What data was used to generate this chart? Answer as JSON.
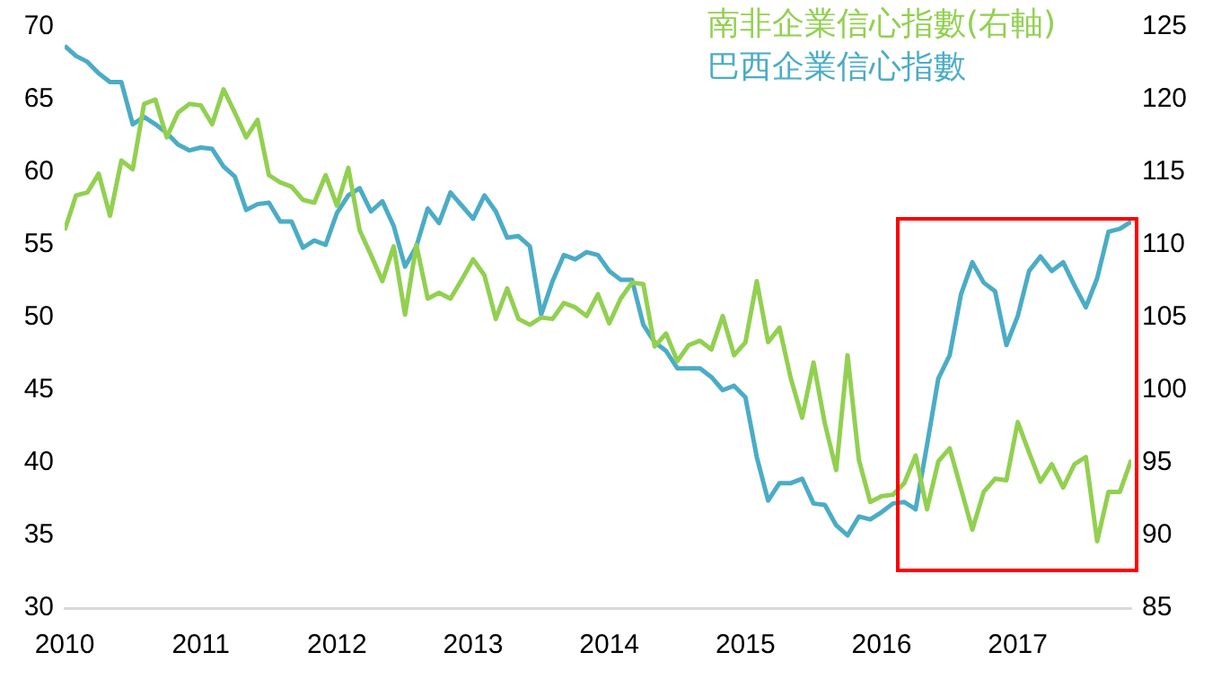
{
  "chart_data": {
    "type": "line",
    "x": [
      "2010-01",
      "2010-02",
      "2010-03",
      "2010-04",
      "2010-05",
      "2010-06",
      "2010-07",
      "2010-08",
      "2010-09",
      "2010-10",
      "2010-11",
      "2010-12",
      "2011-01",
      "2011-02",
      "2011-03",
      "2011-04",
      "2011-05",
      "2011-06",
      "2011-07",
      "2011-08",
      "2011-09",
      "2011-10",
      "2011-11",
      "2011-12",
      "2012-01",
      "2012-02",
      "2012-03",
      "2012-04",
      "2012-05",
      "2012-06",
      "2012-07",
      "2012-08",
      "2012-09",
      "2012-10",
      "2012-11",
      "2012-12",
      "2013-01",
      "2013-02",
      "2013-03",
      "2013-04",
      "2013-05",
      "2013-06",
      "2013-07",
      "2013-08",
      "2013-09",
      "2013-10",
      "2013-11",
      "2013-12",
      "2014-01",
      "2014-02",
      "2014-03",
      "2014-04",
      "2014-05",
      "2014-06",
      "2014-07",
      "2014-08",
      "2014-09",
      "2014-10",
      "2014-11",
      "2014-12",
      "2015-01",
      "2015-02",
      "2015-03",
      "2015-04",
      "2015-05",
      "2015-06",
      "2015-07",
      "2015-08",
      "2015-09",
      "2015-10",
      "2015-11",
      "2015-12",
      "2016-01",
      "2016-02",
      "2016-03",
      "2016-04",
      "2016-05",
      "2016-06",
      "2016-07",
      "2016-08",
      "2016-09",
      "2016-10",
      "2016-11",
      "2016-12",
      "2017-01",
      "2017-02",
      "2017-03",
      "2017-04",
      "2017-05",
      "2017-06",
      "2017-07",
      "2017-08",
      "2017-09",
      "2017-10",
      "2017-11"
    ],
    "series": [
      {
        "name": "南非企業信心指數(右軸)",
        "color": "#92d050",
        "axis": "y2",
        "values": [
          111.0,
          113.4,
          113.6,
          114.9,
          112.0,
          115.8,
          115.2,
          119.7,
          120.0,
          117.4,
          119.1,
          119.7,
          119.6,
          118.3,
          120.7,
          119.1,
          117.4,
          118.6,
          114.8,
          114.3,
          114.0,
          113.1,
          112.9,
          114.8,
          112.7,
          115.3,
          111.0,
          109.3,
          107.5,
          109.9,
          105.2,
          110.0,
          106.3,
          106.7,
          106.3,
          107.6,
          109.0,
          107.9,
          104.9,
          107.0,
          104.9,
          104.5,
          105.0,
          104.9,
          106.0,
          105.7,
          105.1,
          106.6,
          104.6,
          106.3,
          107.4,
          107.3,
          103.0,
          103.9,
          102.0,
          103.1,
          103.4,
          102.8,
          105.1,
          102.4,
          103.3,
          107.5,
          103.3,
          104.3,
          100.8,
          98.1,
          101.9,
          97.7,
          94.5,
          102.4,
          95.2,
          92.3,
          92.7,
          92.8,
          93.6,
          95.5,
          91.8,
          95.1,
          96.0,
          93.2,
          90.4,
          93.0,
          93.9,
          93.8,
          97.8,
          95.7,
          93.7,
          94.9,
          93.3,
          94.9,
          95.4,
          89.6,
          93.0,
          93.0,
          95.2
        ]
      },
      {
        "name": "巴西企業信心指數",
        "color": "#4bacc6",
        "values": [
          68.7,
          68.0,
          67.6,
          66.8,
          66.2,
          66.2,
          63.3,
          63.8,
          63.3,
          62.7,
          61.9,
          61.5,
          61.7,
          61.6,
          60.4,
          59.7,
          57.4,
          57.8,
          57.9,
          56.6,
          56.6,
          54.8,
          55.3,
          55.0,
          57.2,
          58.4,
          58.9,
          57.3,
          58.0,
          56.3,
          53.5,
          54.9,
          57.5,
          56.5,
          58.6,
          57.7,
          56.8,
          58.4,
          57.3,
          55.5,
          55.6,
          54.9,
          50.2,
          52.5,
          54.3,
          54.0,
          54.5,
          54.3,
          53.2,
          52.6,
          52.6,
          49.5,
          48.3,
          47.7,
          46.5,
          46.5,
          46.5,
          45.9,
          45.0,
          45.3,
          44.5,
          40.4,
          37.4,
          38.6,
          38.6,
          38.9,
          37.2,
          37.1,
          35.7,
          35.0,
          36.3,
          36.1,
          36.6,
          37.2,
          37.3,
          36.8,
          41.2,
          45.8,
          47.4,
          51.6,
          53.8,
          52.4,
          51.8,
          48.1,
          50.1,
          53.2,
          54.2,
          53.2,
          53.8,
          52.2,
          50.7,
          52.7,
          55.9,
          56.1,
          56.6
        ]
      }
    ],
    "xlim": [
      "2010-01",
      "2017-11"
    ],
    "xticks": [
      "2010",
      "2011",
      "2012",
      "2013",
      "2014",
      "2015",
      "2016",
      "2017"
    ],
    "ylim": [
      30,
      70
    ],
    "yticks": [
      30,
      35,
      40,
      45,
      50,
      55,
      60,
      65,
      70
    ],
    "y2lim": [
      85,
      125
    ],
    "y2ticks": [
      85,
      90,
      95,
      100,
      105,
      110,
      115,
      120,
      125
    ],
    "grid": false,
    "legend": "top right",
    "marker": "none",
    "line_style": "solid"
  }
}
